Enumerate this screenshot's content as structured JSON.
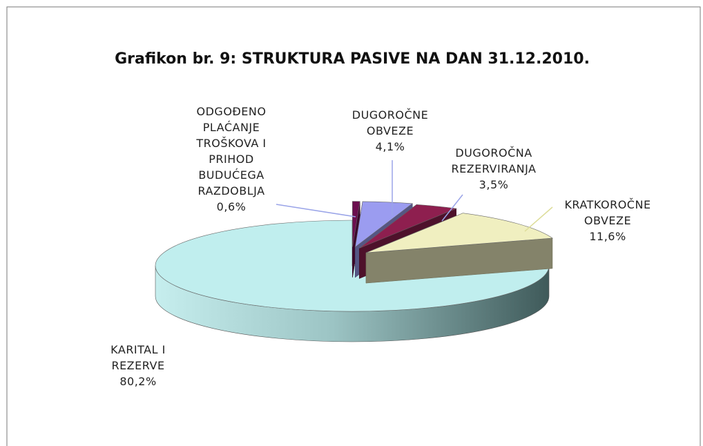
{
  "chart_data": {
    "type": "pie",
    "title": "Grafikon br. 9: STRUKTURA PASIVE NA DAN 31.12.2010.",
    "categories": [
      "ODGOĐENO PLAĆANJE TROŠKOVA I PRIHOD BUDUĆEGA RAZDOBLJA",
      "DUGOROČNE OBVEZE",
      "DUGOROČNA REZERVIRANJA",
      "KRATKOROČNE OBVEZE",
      "KARITAL I REZERVE"
    ],
    "values": [
      0.6,
      4.1,
      3.5,
      11.6,
      80.2
    ],
    "value_labels": [
      "0,6%",
      "4,1%",
      "3,5%",
      "11,6%",
      "80,2%"
    ],
    "colors": [
      "#6b0f4f",
      "#9b9cf0",
      "#8e1f4f",
      "#f0efc0",
      "#c0eeee"
    ]
  }
}
